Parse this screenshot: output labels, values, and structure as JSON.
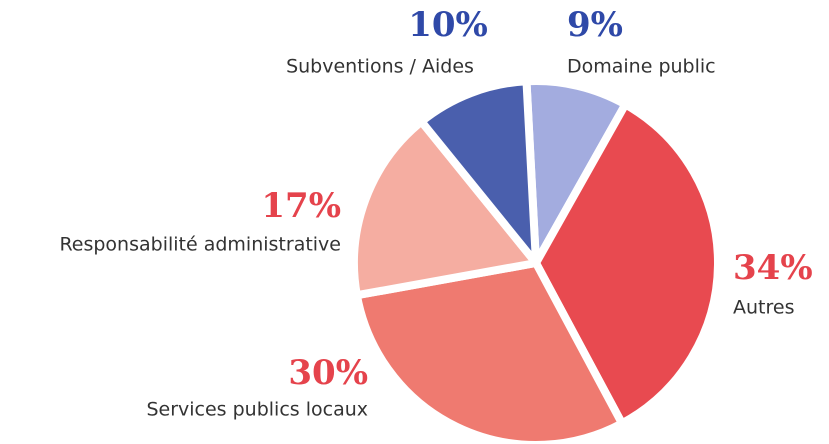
{
  "chart_data": {
    "type": "pie",
    "categories": [
      "Domaine public",
      "Autres",
      "Services publics locaux",
      "Responsabilité administrative",
      "Subventions / Aides"
    ],
    "values": [
      9,
      34,
      30,
      17,
      10
    ],
    "value_labels": [
      "9%",
      "34%",
      "30%",
      "17%",
      "10%"
    ],
    "colors": [
      "#a3acdf",
      "#e84a50",
      "#ef7a70",
      "#f5ada1",
      "#4a5fad"
    ],
    "label_colors": [
      "#2f49a8",
      "#e5434c",
      "#e5434c",
      "#e5434c",
      "#2f49a8"
    ]
  }
}
